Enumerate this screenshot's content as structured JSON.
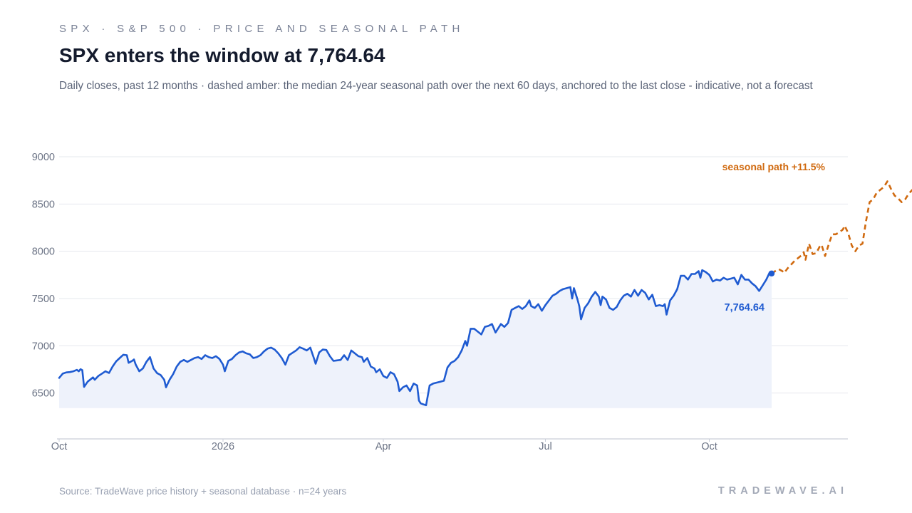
{
  "header": {
    "kicker": "SPX · S&P 500 · PRICE AND SEASONAL PATH",
    "title": "SPX enters the window at 7,764.64",
    "subtitle": "Daily closes, past 12 months · dashed amber: the median 24-year seasonal path over the next 60 days, anchored to the last close - indicative, not a forecast"
  },
  "footer": {
    "source": "Source: TradeWave price history + seasonal database · n=24 years",
    "brand": "TRADEWAVE.AI"
  },
  "colors": {
    "price_line": "#1f5bd1",
    "price_fill": "#eef2fb",
    "seasonal": "#d06a10",
    "grid": "#e6e8ee",
    "axis": "#c9ced8"
  },
  "chart_data": {
    "type": "line",
    "title": "SPX enters the window at 7,764.64",
    "xlabel": "",
    "ylabel": "",
    "ylim": [
      6250,
      9000
    ],
    "y_ticks": [
      6500,
      7000,
      7500,
      8000,
      8500,
      9000
    ],
    "x_ticks": [
      {
        "label": "Oct",
        "day": 0
      },
      {
        "label": "2026",
        "day": 92
      },
      {
        "label": "Apr",
        "day": 182
      },
      {
        "label": "Jul",
        "day": 273
      },
      {
        "label": "Oct",
        "day": 365
      }
    ],
    "xlim_days": [
      0,
      444
    ],
    "grid": true,
    "series": [
      {
        "kind": "price",
        "points": [
          [
            0,
            6660
          ],
          [
            2,
            6705
          ],
          [
            4,
            6718
          ],
          [
            6,
            6722
          ],
          [
            8,
            6730
          ],
          [
            10,
            6745
          ],
          [
            11,
            6730
          ],
          [
            12,
            6752
          ],
          [
            13,
            6742
          ],
          [
            14,
            6565
          ],
          [
            16,
            6620
          ],
          [
            18,
            6650
          ],
          [
            19,
            6665
          ],
          [
            20,
            6640
          ],
          [
            22,
            6680
          ],
          [
            24,
            6705
          ],
          [
            26,
            6730
          ],
          [
            28,
            6712
          ],
          [
            30,
            6780
          ],
          [
            32,
            6835
          ],
          [
            34,
            6870
          ],
          [
            36,
            6905
          ],
          [
            38,
            6900
          ],
          [
            39,
            6820
          ],
          [
            41,
            6840
          ],
          [
            42,
            6855
          ],
          [
            43,
            6800
          ],
          [
            45,
            6730
          ],
          [
            47,
            6760
          ],
          [
            49,
            6830
          ],
          [
            51,
            6880
          ],
          [
            53,
            6760
          ],
          [
            55,
            6710
          ],
          [
            57,
            6690
          ],
          [
            59,
            6640
          ],
          [
            60,
            6560
          ],
          [
            62,
            6640
          ],
          [
            64,
            6700
          ],
          [
            66,
            6780
          ],
          [
            68,
            6830
          ],
          [
            70,
            6850
          ],
          [
            72,
            6830
          ],
          [
            74,
            6850
          ],
          [
            76,
            6870
          ],
          [
            78,
            6880
          ],
          [
            80,
            6860
          ],
          [
            82,
            6900
          ],
          [
            84,
            6880
          ],
          [
            86,
            6870
          ],
          [
            88,
            6890
          ],
          [
            90,
            6860
          ],
          [
            92,
            6800
          ],
          [
            93,
            6730
          ],
          [
            95,
            6840
          ],
          [
            97,
            6860
          ],
          [
            99,
            6900
          ],
          [
            101,
            6930
          ],
          [
            103,
            6940
          ],
          [
            105,
            6920
          ],
          [
            107,
            6910
          ],
          [
            109,
            6870
          ],
          [
            111,
            6880
          ],
          [
            113,
            6900
          ],
          [
            115,
            6940
          ],
          [
            117,
            6970
          ],
          [
            119,
            6980
          ],
          [
            121,
            6960
          ],
          [
            123,
            6920
          ],
          [
            125,
            6870
          ],
          [
            127,
            6800
          ],
          [
            129,
            6900
          ],
          [
            131,
            6925
          ],
          [
            133,
            6950
          ],
          [
            135,
            6985
          ],
          [
            137,
            6970
          ],
          [
            139,
            6950
          ],
          [
            141,
            6980
          ],
          [
            143,
            6870
          ],
          [
            144,
            6810
          ],
          [
            146,
            6930
          ],
          [
            148,
            6960
          ],
          [
            150,
            6955
          ],
          [
            152,
            6890
          ],
          [
            154,
            6840
          ],
          [
            156,
            6845
          ],
          [
            158,
            6850
          ],
          [
            160,
            6900
          ],
          [
            162,
            6850
          ],
          [
            164,
            6950
          ],
          [
            166,
            6920
          ],
          [
            168,
            6890
          ],
          [
            170,
            6880
          ],
          [
            171,
            6830
          ],
          [
            173,
            6870
          ],
          [
            175,
            6780
          ],
          [
            177,
            6760
          ],
          [
            178,
            6720
          ],
          [
            180,
            6750
          ],
          [
            182,
            6680
          ],
          [
            184,
            6660
          ],
          [
            186,
            6720
          ],
          [
            188,
            6700
          ],
          [
            190,
            6620
          ],
          [
            191,
            6520
          ],
          [
            193,
            6560
          ],
          [
            195,
            6580
          ],
          [
            197,
            6520
          ],
          [
            199,
            6600
          ],
          [
            201,
            6580
          ],
          [
            202,
            6420
          ],
          [
            203,
            6390
          ],
          [
            206,
            6370
          ],
          [
            208,
            6580
          ],
          [
            210,
            6600
          ],
          [
            212,
            6610
          ],
          [
            214,
            6620
          ],
          [
            216,
            6630
          ],
          [
            218,
            6770
          ],
          [
            220,
            6820
          ],
          [
            222,
            6840
          ],
          [
            224,
            6880
          ],
          [
            226,
            6950
          ],
          [
            228,
            7050
          ],
          [
            229,
            7000
          ],
          [
            231,
            7180
          ],
          [
            233,
            7180
          ],
          [
            235,
            7150
          ],
          [
            237,
            7120
          ],
          [
            239,
            7200
          ],
          [
            241,
            7210
          ],
          [
            243,
            7230
          ],
          [
            245,
            7140
          ],
          [
            246,
            7170
          ],
          [
            248,
            7230
          ],
          [
            250,
            7200
          ],
          [
            252,
            7240
          ],
          [
            254,
            7380
          ],
          [
            256,
            7400
          ],
          [
            258,
            7420
          ],
          [
            260,
            7390
          ],
          [
            262,
            7420
          ],
          [
            264,
            7480
          ],
          [
            265,
            7420
          ],
          [
            267,
            7400
          ],
          [
            269,
            7440
          ],
          [
            271,
            7370
          ],
          [
            273,
            7430
          ],
          [
            275,
            7480
          ],
          [
            277,
            7530
          ],
          [
            279,
            7550
          ],
          [
            281,
            7580
          ],
          [
            283,
            7600
          ],
          [
            285,
            7610
          ],
          [
            287,
            7620
          ],
          [
            288,
            7500
          ],
          [
            289,
            7610
          ],
          [
            291,
            7490
          ],
          [
            292,
            7420
          ],
          [
            293,
            7280
          ],
          [
            295,
            7400
          ],
          [
            297,
            7450
          ],
          [
            299,
            7520
          ],
          [
            301,
            7570
          ],
          [
            303,
            7520
          ],
          [
            304,
            7430
          ],
          [
            305,
            7520
          ],
          [
            307,
            7490
          ],
          [
            309,
            7400
          ],
          [
            311,
            7380
          ],
          [
            313,
            7410
          ],
          [
            315,
            7480
          ],
          [
            317,
            7530
          ],
          [
            319,
            7550
          ],
          [
            321,
            7520
          ],
          [
            323,
            7590
          ],
          [
            325,
            7530
          ],
          [
            327,
            7590
          ],
          [
            329,
            7560
          ],
          [
            331,
            7490
          ],
          [
            333,
            7540
          ],
          [
            335,
            7420
          ],
          [
            337,
            7430
          ],
          [
            339,
            7420
          ],
          [
            340,
            7440
          ],
          [
            341,
            7330
          ],
          [
            343,
            7480
          ],
          [
            345,
            7530
          ],
          [
            347,
            7600
          ],
          [
            349,
            7740
          ],
          [
            351,
            7740
          ],
          [
            353,
            7700
          ],
          [
            355,
            7760
          ],
          [
            357,
            7760
          ],
          [
            359,
            7790
          ],
          [
            360,
            7720
          ],
          [
            361,
            7800
          ],
          [
            363,
            7780
          ],
          [
            365,
            7750
          ],
          [
            367,
            7680
          ],
          [
            369,
            7700
          ],
          [
            371,
            7690
          ],
          [
            373,
            7720
          ],
          [
            375,
            7700
          ],
          [
            377,
            7710
          ],
          [
            379,
            7720
          ],
          [
            381,
            7650
          ],
          [
            383,
            7750
          ],
          [
            385,
            7700
          ],
          [
            387,
            7700
          ],
          [
            389,
            7660
          ],
          [
            391,
            7630
          ],
          [
            393,
            7580
          ],
          [
            395,
            7640
          ],
          [
            397,
            7700
          ],
          [
            399,
            7780
          ],
          [
            400,
            7764.64
          ]
        ]
      },
      {
        "kind": "seasonal",
        "name": "seasonal path +11.5%",
        "points": [
          [
            400,
            7764.64
          ],
          [
            402,
            7790
          ],
          [
            404,
            7810
          ],
          [
            406,
            7790
          ],
          [
            407,
            7770
          ],
          [
            409,
            7820
          ],
          [
            411,
            7860
          ],
          [
            413,
            7900
          ],
          [
            415,
            7930
          ],
          [
            417,
            7960
          ],
          [
            418,
            7990
          ],
          [
            419,
            7910
          ],
          [
            421,
            8080
          ],
          [
            423,
            7970
          ],
          [
            425,
            7980
          ],
          [
            427,
            8050
          ],
          [
            428,
            8070
          ],
          [
            430,
            7950
          ],
          [
            432,
            8070
          ],
          [
            434,
            8180
          ],
          [
            436,
            8180
          ],
          [
            438,
            8200
          ],
          [
            440,
            8230
          ],
          [
            441,
            8270
          ],
          [
            443,
            8190
          ],
          [
            445,
            8060
          ],
          [
            447,
            8000
          ],
          [
            449,
            8060
          ],
          [
            451,
            8080
          ],
          [
            453,
            8320
          ],
          [
            455,
            8520
          ],
          [
            457,
            8550
          ],
          [
            459,
            8620
          ],
          [
            461,
            8650
          ],
          [
            463,
            8680
          ],
          [
            465,
            8740
          ],
          [
            467,
            8660
          ],
          [
            469,
            8590
          ],
          [
            471,
            8560
          ],
          [
            473,
            8520
          ],
          [
            475,
            8550
          ],
          [
            477,
            8610
          ],
          [
            479,
            8650
          ],
          [
            481,
            8610
          ],
          [
            483,
            8660
          ],
          [
            485,
            8720
          ],
          [
            487,
            8760
          ],
          [
            489,
            8790
          ],
          [
            491,
            8830
          ],
          [
            493,
            8820
          ],
          [
            495,
            8880
          ],
          [
            497,
            8860
          ],
          [
            499,
            8900
          ],
          [
            501,
            8850
          ],
          [
            503,
            8770
          ],
          [
            505,
            8680
          ]
        ]
      }
    ],
    "annotations": [
      {
        "text": "7,764.64",
        "at_day": 400,
        "at_value": 7764.64
      },
      {
        "text": "seasonal path +11.5%",
        "at_day": 505,
        "at_value": 8680
      }
    ]
  }
}
